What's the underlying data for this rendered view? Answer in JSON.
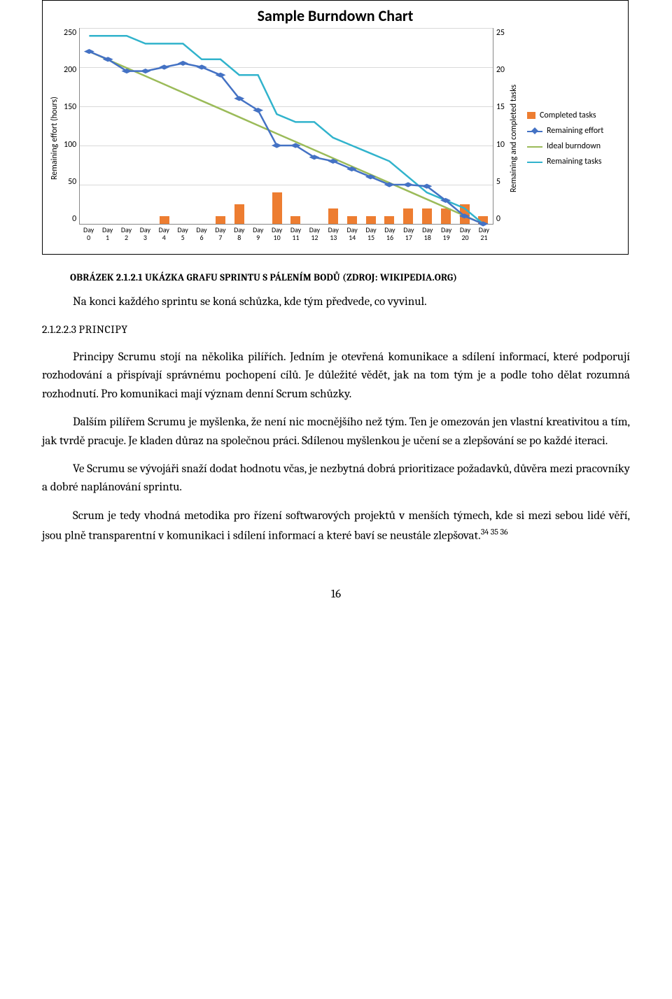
{
  "chart": {
    "title": "Sample Burndown Chart",
    "title_fontsize": 22,
    "background_color": "#ffffff",
    "grid_color": "#d9d9d9",
    "y_left": {
      "label": "Remaining effort (hours)",
      "min": 0,
      "max": 250,
      "step": 50,
      "ticks": [
        "250",
        "200",
        "150",
        "100",
        "50",
        "0"
      ]
    },
    "y_right": {
      "label": "Remaining and completed tasks",
      "min": 0,
      "max": 25,
      "step": 5,
      "ticks": [
        "25",
        "20",
        "15",
        "10",
        "5",
        "0"
      ]
    },
    "x_categories": [
      "Day 0",
      "Day 1",
      "Day 2",
      "Day 3",
      "Day 4",
      "Day 5",
      "Day 6",
      "Day 7",
      "Day 8",
      "Day 9",
      "Day 10",
      "Day 11",
      "Day 12",
      "Day 13",
      "Day 14",
      "Day 15",
      "Day 16",
      "Day 17",
      "Day 18",
      "Day 19",
      "Day 20",
      "Day 21"
    ],
    "series": {
      "completed_tasks": {
        "type": "bar",
        "color": "#ed7d31",
        "axis": "right",
        "values": [
          0,
          0,
          0,
          0,
          1,
          0,
          0,
          1,
          2.5,
          0,
          4,
          1,
          0,
          2,
          1,
          1,
          1,
          2,
          2,
          2,
          2.5,
          1
        ]
      },
      "remaining_effort": {
        "type": "line_marker",
        "color": "#4472c4",
        "marker": "diamond",
        "marker_size": 7,
        "line_width": 2.5,
        "axis": "left",
        "values": [
          220,
          210,
          195,
          195,
          200,
          205,
          200,
          190,
          160,
          145,
          100,
          100,
          85,
          80,
          70,
          60,
          50,
          50,
          48,
          30,
          10,
          0
        ]
      },
      "ideal_burndown": {
        "type": "line",
        "color": "#9bbb59",
        "line_width": 2.5,
        "axis": "left",
        "values": [
          220,
          209.5,
          199,
          188.6,
          178.1,
          167.6,
          157.1,
          146.7,
          136.2,
          125.7,
          115.2,
          104.8,
          94.3,
          83.8,
          73.3,
          62.9,
          52.4,
          41.9,
          31.4,
          21,
          10.5,
          0
        ]
      },
      "remaining_tasks": {
        "type": "line",
        "color": "#31b3cc",
        "line_width": 2.5,
        "axis": "right",
        "values": [
          24,
          24,
          24,
          23,
          23,
          23,
          21,
          21,
          19,
          19,
          14,
          13,
          13,
          11,
          10,
          9,
          8,
          6,
          4,
          3,
          2,
          0
        ]
      }
    },
    "legend": [
      {
        "label": "Completed tasks",
        "type": "swatch",
        "color": "#ed7d31"
      },
      {
        "label": "Remaining effort",
        "type": "line_marker",
        "color": "#4472c4"
      },
      {
        "label": "Ideal burndown",
        "type": "line",
        "color": "#9bbb59"
      },
      {
        "label": "Remaining tasks",
        "type": "line",
        "color": "#31b3cc"
      }
    ]
  },
  "caption": "OBRÁZEK 2.1.2.1 UKÁZKA GRAFU SPRINTU S PÁLENÍM BODŮ (ZDROJ: WIKIPEDIA.ORG)",
  "section": {
    "number": "2.1.2.2.3",
    "label": "PRINCIPY"
  },
  "paragraphs": [
    "Na konci každého sprintu se koná schůzka, kde tým předvede, co vyvinul.",
    "Principy Scrumu stojí na několika pilířích. Jedním je otevřená komunikace a sdílení informací, které podporují rozhodování a přispívají správnému pochopení cílů. Je důležité vědět, jak na tom tým je a podle toho dělat rozumná rozhodnutí. Pro komunikaci mají význam denní Scrum schůzky.",
    "Dalším pilířem Scrumu je myšlenka, že není nic mocnějšího než tým. Ten je omezován jen vlastní kreativitou a tím, jak tvrdě pracuje. Je kladen důraz na společnou práci. Sdílenou myšlenkou je učení se a zlepšování se po každé iteraci.",
    "Ve Scrumu se vývojáři snaží dodat hodnotu včas, je nezbytná dobrá prioritizace požadavků, důvěra mezi pracovníky a dobré naplánování sprintu.",
    "Scrum je tedy vhodná metodika pro řízení softwarových projektů v menších týmech, kde si mezi sebou lidé věří, jsou plně transparentní v komunikaci i sdílení informací a které baví se neustále zlepšovat."
  ],
  "footnote_marks": "34 35 36",
  "page_number": "16"
}
